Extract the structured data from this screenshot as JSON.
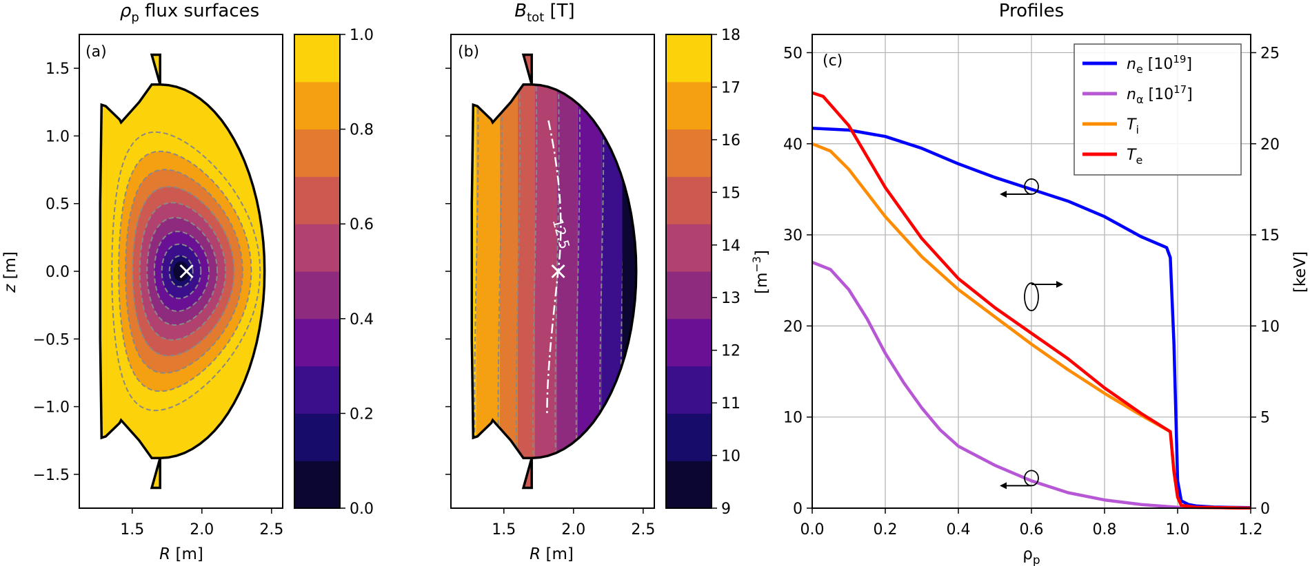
{
  "chart_data": [
    {
      "type": "heatmap",
      "panel_label": "(a)",
      "title_main": "ρ",
      "title_sub": "p",
      "title_rest": " flux surfaces",
      "xlabel_main": "R",
      "xlabel_rest": " [m]",
      "ylabel_main": "z",
      "ylabel_rest": " [m]",
      "xlim": [
        1.12,
        2.58
      ],
      "ylim": [
        -1.75,
        1.75
      ],
      "xticks": [
        "1.5",
        "2.0",
        "2.5"
      ],
      "xtick_values": [
        1.5,
        2.0,
        2.5
      ],
      "yticks": [
        "−1.5",
        "−1.0",
        "−0.5",
        "0.0",
        "0.5",
        "1.0",
        "1.5"
      ],
      "ytick_values": [
        -1.5,
        -1.0,
        -0.5,
        0.0,
        0.5,
        1.0,
        1.5
      ],
      "magnetic_axis": {
        "R": 1.89,
        "z": 0.0
      },
      "contour_levels": [
        0.0,
        0.1,
        0.2,
        0.3,
        0.4,
        0.5,
        0.6,
        0.7,
        0.8,
        0.9,
        1.0
      ],
      "colorbar": {
        "ticks": [
          "0.0",
          "0.2",
          "0.4",
          "0.6",
          "0.8",
          "1.0"
        ],
        "tick_values": [
          0.0,
          0.2,
          0.4,
          0.6,
          0.8,
          1.0
        ],
        "colors": [
          "#0b0732",
          "#180c6b",
          "#3b0f8c",
          "#6a1094",
          "#8e2b7e",
          "#b1416e",
          "#cd5a51",
          "#e27b30",
          "#f4a011",
          "#fcd20a"
        ]
      },
      "grid": false
    },
    {
      "type": "heatmap",
      "panel_label": "(b)",
      "title_main": "B",
      "title_sub": "tot",
      "title_rest": " [T]",
      "xlabel_main": "R",
      "xlabel_rest": " [m]",
      "xlim": [
        1.12,
        2.58
      ],
      "ylim": [
        -1.75,
        1.75
      ],
      "xticks": [
        "1.5",
        "2.0",
        "2.5"
      ],
      "xtick_values": [
        1.5,
        2.0,
        2.5
      ],
      "contour_annotation": "12.5",
      "contour_levels_T": [
        9,
        10,
        11,
        12,
        13,
        14,
        15,
        16,
        17,
        18
      ],
      "colorbar": {
        "ticks": [
          "9",
          "10",
          "11",
          "12",
          "13",
          "14",
          "15",
          "16",
          "17",
          "18"
        ],
        "tick_values": [
          9,
          10,
          11,
          12,
          13,
          14,
          15,
          16,
          17,
          18
        ],
        "colors": [
          "#0b0732",
          "#180c6b",
          "#3b0f8c",
          "#6a1094",
          "#8e2b7e",
          "#b1416e",
          "#cd5a51",
          "#e27b30",
          "#f4a011",
          "#fcd20a"
        ]
      },
      "grid": false
    },
    {
      "type": "line",
      "panel_label": "(c)",
      "title": "Profiles",
      "xlabel_main": "ρ",
      "xlabel_sub": "p",
      "ylabel_left": "[m",
      "ylabel_left_sup": "−3",
      "ylabel_left_end": "]",
      "ylabel_right": "[keV]",
      "xlim": [
        0,
        1.2
      ],
      "ylim_left": [
        0,
        52
      ],
      "ylim_right": [
        0,
        26
      ],
      "xticks": [
        "0.0",
        "0.2",
        "0.4",
        "0.6",
        "0.8",
        "1.0",
        "1.2"
      ],
      "xtick_values": [
        0,
        0.2,
        0.4,
        0.6,
        0.8,
        1.0,
        1.2
      ],
      "yticks_left": [
        "0",
        "10",
        "20",
        "30",
        "40",
        "50"
      ],
      "ytick_values_left": [
        0,
        10,
        20,
        30,
        40,
        50
      ],
      "yticks_right": [
        "0",
        "5",
        "10",
        "15",
        "20",
        "25"
      ],
      "ytick_values_right": [
        0,
        5,
        10,
        15,
        20,
        25
      ],
      "grid": true,
      "legend_position": "top-right",
      "series": [
        {
          "name": "n",
          "name_sub": "e",
          "name_rest": " [10",
          "name_sup": "19",
          "name_end": "]",
          "color": "#0000ff",
          "axis": "left",
          "x": [
            0,
            0.1,
            0.2,
            0.3,
            0.4,
            0.5,
            0.6,
            0.7,
            0.8,
            0.9,
            0.97,
            0.98,
            0.99,
            1.0,
            1.01,
            1.03,
            1.05,
            1.1,
            1.2
          ],
          "y": [
            41.7,
            41.5,
            40.8,
            39.5,
            37.8,
            36.3,
            35.0,
            33.7,
            32.0,
            29.8,
            28.6,
            27.5,
            18.0,
            3.0,
            0.8,
            0.4,
            0.25,
            0.12,
            0.05
          ]
        },
        {
          "name": "n",
          "name_sub": "α",
          "name_rest": " [10",
          "name_sup": "17",
          "name_end": "]",
          "color": "#b757d5",
          "axis": "left",
          "x": [
            0,
            0.05,
            0.1,
            0.15,
            0.2,
            0.25,
            0.3,
            0.35,
            0.4,
            0.5,
            0.6,
            0.7,
            0.8,
            0.9,
            1.0,
            1.1,
            1.2
          ],
          "y": [
            27.0,
            26.2,
            24.0,
            20.8,
            17.0,
            13.8,
            11.0,
            8.6,
            6.8,
            4.7,
            3.0,
            1.7,
            0.9,
            0.4,
            0.1,
            0.05,
            0.02
          ]
        },
        {
          "name": "T",
          "name_sub": "i",
          "color": "#ff8c00",
          "axis": "right",
          "x": [
            0,
            0.05,
            0.1,
            0.2,
            0.3,
            0.4,
            0.5,
            0.6,
            0.7,
            0.8,
            0.9,
            0.98,
            0.99,
            1.0,
            1.01,
            1.05,
            1.2
          ],
          "y": [
            20.0,
            19.6,
            18.6,
            16.0,
            13.8,
            12.0,
            10.5,
            9.0,
            7.6,
            6.3,
            5.1,
            4.2,
            2.0,
            0.6,
            0.15,
            0.05,
            0.0
          ]
        },
        {
          "name": "T",
          "name_sub": "e",
          "color": "#ff0000",
          "axis": "right",
          "x": [
            0,
            0.03,
            0.1,
            0.2,
            0.3,
            0.4,
            0.5,
            0.6,
            0.7,
            0.8,
            0.9,
            0.98,
            0.99,
            1.0,
            1.01,
            1.05,
            1.2
          ],
          "y": [
            22.8,
            22.6,
            21.0,
            17.6,
            14.8,
            12.6,
            11.0,
            9.6,
            8.2,
            6.6,
            5.2,
            4.2,
            2.0,
            0.6,
            0.15,
            0.05,
            0.0
          ]
        }
      ],
      "annotations": [
        {
          "at": [
            0.6,
            35.3
          ],
          "axis": "left",
          "arrow": "left"
        },
        {
          "at": [
            0.6,
            11.6
          ],
          "axis": "right",
          "arrow": "right"
        },
        {
          "at": [
            0.6,
            3.3
          ],
          "axis": "left",
          "arrow": "left"
        }
      ]
    }
  ]
}
